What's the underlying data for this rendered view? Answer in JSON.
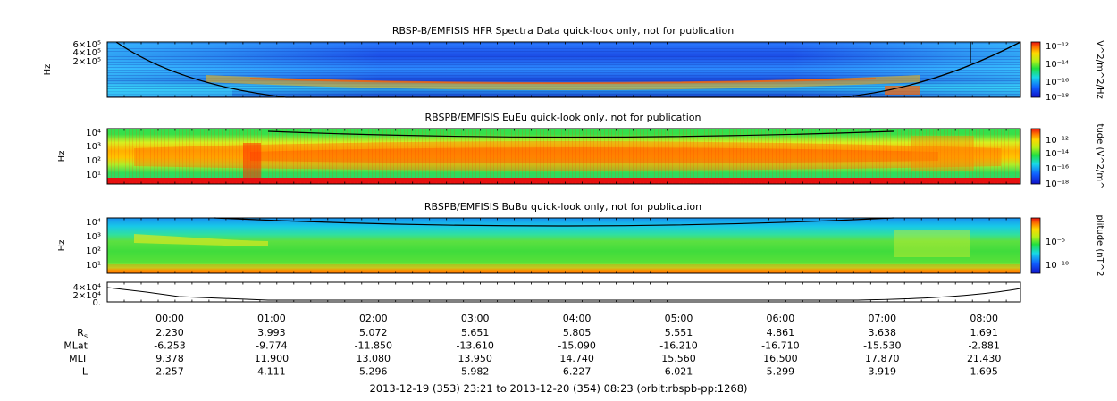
{
  "chart_data": [
    {
      "type": "heatmap",
      "title": "RBSP-B/EMFISIS  HFR Spectra Data quick-look only, not for publication",
      "ylabel": "Hz",
      "y_ticks": [
        "6×10⁵",
        "4×10⁵",
        "2×10⁵"
      ],
      "colorbar_label": "V^2/m^2/Hz",
      "colorbar_ticks": [
        "10⁻¹²",
        "10⁻¹⁴",
        "10⁻¹⁶",
        "10⁻¹⁸"
      ]
    },
    {
      "type": "heatmap",
      "title": "RBSPB/EMFISIS  EuEu quick-look only, not for publication",
      "ylabel": "Hz",
      "y_ticks": [
        "10⁴",
        "10³",
        "10²",
        "10¹"
      ],
      "colorbar_label": "tude (V^2/m^",
      "colorbar_ticks": [
        "10⁻¹²",
        "10⁻¹⁴",
        "10⁻¹⁶",
        "10⁻¹⁸"
      ]
    },
    {
      "type": "heatmap",
      "title": "RBSPB/EMFISIS  BuBu quick-look only, not for publication",
      "ylabel": "Hz",
      "y_ticks": [
        "10⁴",
        "10³",
        "10²",
        "10¹"
      ],
      "colorbar_label": "plitude (nT^2",
      "colorbar_ticks": [
        "10⁻⁵",
        "10⁻¹⁰"
      ]
    },
    {
      "type": "line",
      "y_ticks": [
        "4×10⁴",
        "2×10⁴",
        "0."
      ]
    }
  ],
  "time_ticks": [
    "00:00",
    "01:00",
    "02:00",
    "03:00",
    "04:00",
    "05:00",
    "06:00",
    "07:00",
    "08:00"
  ],
  "ephemeris": [
    {
      "label": "R",
      "label_sub": "s",
      "values": [
        "2.230",
        "3.993",
        "5.072",
        "5.651",
        "5.805",
        "5.551",
        "4.861",
        "3.638",
        "1.691"
      ]
    },
    {
      "label": "MLat",
      "values": [
        "-6.253",
        "-9.774",
        "-11.850",
        "-13.610",
        "-15.090",
        "-16.210",
        "-16.710",
        "-15.530",
        "-2.881"
      ]
    },
    {
      "label": "MLT",
      "values": [
        "9.378",
        "11.900",
        "13.080",
        "13.950",
        "14.740",
        "15.560",
        "16.500",
        "17.870",
        "21.430"
      ]
    },
    {
      "label": "L",
      "values": [
        "2.257",
        "4.111",
        "5.296",
        "5.982",
        "6.227",
        "6.021",
        "5.299",
        "3.919",
        "1.695"
      ]
    }
  ],
  "footer": "2013-12-19 (353) 23:21 to 2013-12-20 (354) 08:23 (orbit:rbspb-pp:1268)"
}
